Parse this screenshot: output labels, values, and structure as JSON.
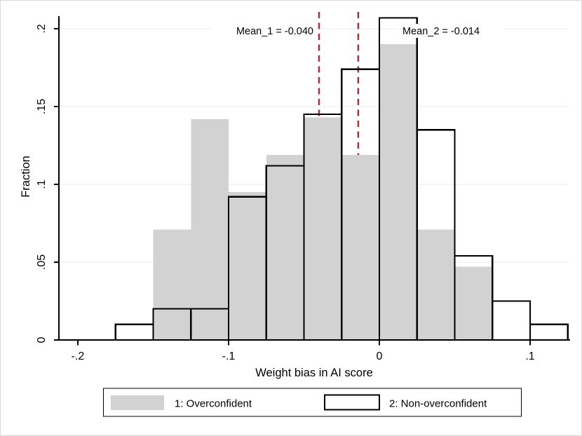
{
  "chart_data": {
    "type": "bar",
    "subtype": "overlaid-histogram",
    "title": "",
    "xlabel": "Weight bias in AI score",
    "ylabel": "Fraction",
    "bin_width": 0.025,
    "bin_starts": [
      -0.175,
      -0.15,
      -0.125,
      -0.1,
      -0.075,
      -0.05,
      -0.025,
      0,
      0.025,
      0.05,
      0.075,
      0.1
    ],
    "series": [
      {
        "name": "1: Overconfident",
        "style": "filled",
        "fill": "#d2d2d2",
        "values": [
          0,
          0.071,
          0.142,
          0.095,
          0.119,
          0.143,
          0.119,
          0.19,
          0.071,
          0.047,
          0,
          0
        ]
      },
      {
        "name": "2: Non-overconfident",
        "style": "hollow-outline",
        "outline": "#000000",
        "values": [
          0.01,
          0.02,
          0.02,
          0.092,
          0.112,
          0.145,
          0.174,
          0.207,
          0.135,
          0.054,
          0.025,
          0.01
        ]
      }
    ],
    "mean_lines": [
      {
        "label": "Mean_1 = -0.040",
        "x": -0.04,
        "color": "#9e3a3e",
        "style": "dashed"
      },
      {
        "label": "Mean_2 = -0.014",
        "x": -0.014,
        "color": "#9e3a3e",
        "style": "dashed"
      }
    ],
    "xticks": [
      -0.2,
      -0.1,
      0,
      0.1
    ],
    "xtick_labels": [
      "-.2",
      "-.1",
      "0",
      ".1"
    ],
    "yticks": [
      0,
      0.05,
      0.1,
      0.15,
      0.2
    ],
    "ytick_labels": [
      "0",
      ".05",
      ".1",
      ".15",
      ".2"
    ],
    "xlim": [
      -0.2125,
      0.127
    ],
    "ylim": [
      0,
      0.21
    ],
    "grid": true,
    "legend_position": "bottom",
    "colors": {
      "bar_fill": "#d2d2d2",
      "bar_outline": "#000000",
      "grid": "#e4eef0",
      "mean_line": "#9e3a3e",
      "axis": "#000000",
      "background": "#ffffff"
    }
  }
}
